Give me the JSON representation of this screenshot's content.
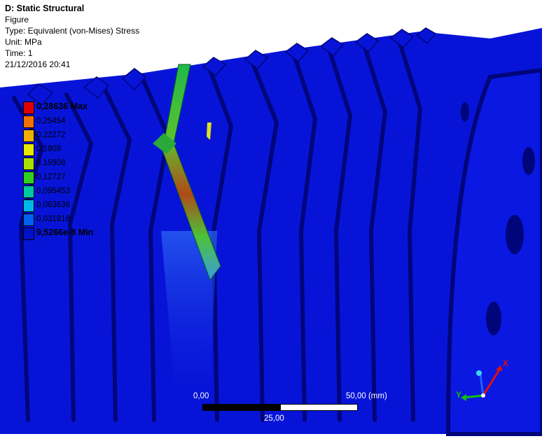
{
  "info": {
    "title": "D: Static Structural",
    "line_figure": "Figure",
    "line_type": "Type: Equivalent (von-Mises) Stress",
    "line_unit": "Unit: MPa",
    "line_time": "Time: 1",
    "line_date": "21/12/2016 20:41"
  },
  "legend": {
    "entries": [
      {
        "label": "0,28636 Max",
        "color": "#e00000",
        "kind": "max"
      },
      {
        "label": "0,25454",
        "color": "#f07000",
        "kind": "level"
      },
      {
        "label": "0,22272",
        "color": "#f0b000",
        "kind": "level"
      },
      {
        "label": "0,1909",
        "color": "#e8e800",
        "kind": "level"
      },
      {
        "label": "0,15908",
        "color": "#a8e000",
        "kind": "level"
      },
      {
        "label": "0,12727",
        "color": "#30d020",
        "kind": "level"
      },
      {
        "label": "0,095453",
        "color": "#00c8a0",
        "kind": "level"
      },
      {
        "label": "0,063636",
        "color": "#00b8e8",
        "kind": "level"
      },
      {
        "label": "0,031818",
        "color": "#0060f0",
        "kind": "level"
      },
      {
        "label": "9,5266e-8 Min",
        "color": "#0010c8",
        "kind": "min"
      }
    ]
  },
  "scale_bar": {
    "label_start": "0,00",
    "label_mid": "25,00",
    "label_end": "50,00 (mm)"
  },
  "triad": {
    "x_label": "X",
    "y_label": "Y"
  },
  "colors": {
    "model_blue": "#0714d8",
    "groove_dark": "#00057a",
    "stress_green": "#22c23a",
    "stress_red": "#c04010"
  }
}
